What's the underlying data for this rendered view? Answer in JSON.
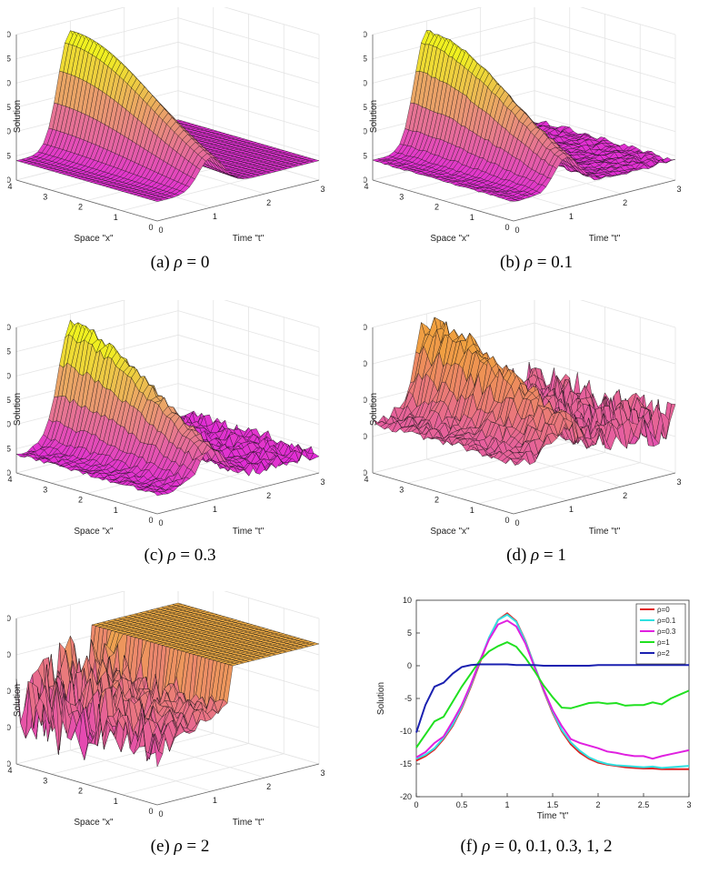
{
  "chart_data": [
    {
      "type": "surface",
      "caption_label": "(a)",
      "caption_symbol": "ρ",
      "caption_value": "= 0",
      "zlabel": "Solution",
      "xlabel": "Space \"x\"",
      "tlabel": "Time \"t\"",
      "zticks": [
        "10",
        "5",
        "0",
        "-5",
        "-10",
        "-15",
        "-20"
      ],
      "zlim": [
        -20,
        10
      ],
      "xticks": [
        "4",
        "3",
        "2",
        "1",
        "0"
      ],
      "tticks": [
        "0",
        "1",
        "2",
        "3"
      ],
      "noise": 0,
      "color_low": "#e020e0",
      "color_high": "#f0f020"
    },
    {
      "type": "surface",
      "caption_label": "(b)",
      "caption_symbol": "ρ",
      "caption_value": "= 0.1",
      "zlabel": "Solution",
      "xlabel": "Space \"x\"",
      "tlabel": "Time \"t\"",
      "zticks": [
        "10",
        "5",
        "0",
        "-5",
        "-10",
        "-15",
        "-20"
      ],
      "zlim": [
        -20,
        10
      ],
      "xticks": [
        "4",
        "3",
        "2",
        "1",
        "0"
      ],
      "tticks": [
        "0",
        "1",
        "2",
        "3"
      ],
      "noise": 0.1,
      "color_low": "#e020e0",
      "color_high": "#f0f020"
    },
    {
      "type": "surface",
      "caption_label": "(c)",
      "caption_symbol": "ρ",
      "caption_value": "= 0.3",
      "zlabel": "Solution",
      "xlabel": "Space \"x\"",
      "tlabel": "Time \"t\"",
      "zticks": [
        "10",
        "5",
        "0",
        "-5",
        "-10",
        "-15",
        "-20"
      ],
      "zlim": [
        -20,
        10
      ],
      "xticks": [
        "4",
        "3",
        "2",
        "1",
        "0"
      ],
      "tticks": [
        "0",
        "1",
        "2",
        "3"
      ],
      "noise": 0.3,
      "color_low": "#e020e0",
      "color_high": "#f0f020"
    },
    {
      "type": "surface",
      "caption_label": "(d)",
      "caption_symbol": "ρ",
      "caption_value": "= 1",
      "zlabel": "Solution",
      "xlabel": "Space \"x\"",
      "tlabel": "Time \"t\"",
      "zticks": [
        "10",
        "0",
        "-10",
        "-20",
        "-30"
      ],
      "zlim": [
        -30,
        10
      ],
      "xticks": [
        "4",
        "3",
        "2",
        "1",
        "0"
      ],
      "tticks": [
        "0",
        "1",
        "2",
        "3"
      ],
      "noise": 1,
      "color_low": "#e03cd0",
      "color_high": "#f0a040"
    },
    {
      "type": "surface",
      "caption_label": "(e)",
      "caption_symbol": "ρ",
      "caption_value": "= 2",
      "zlabel": "Solution",
      "xlabel": "Space \"x\"",
      "tlabel": "Time \"t\"",
      "zticks": [
        "10",
        "0",
        "-10",
        "-20",
        "-30"
      ],
      "zlim": [
        -30,
        10
      ],
      "xticks": [
        "4",
        "3",
        "2",
        "1",
        "0"
      ],
      "tticks": [
        "0",
        "1",
        "2",
        "3"
      ],
      "noise": 2,
      "color_low": "#e020e0",
      "color_high": "#f0b040"
    },
    {
      "type": "line",
      "caption_label": "(f)",
      "caption_symbol": "ρ",
      "caption_value": "= 0,  0.1,  0.3,  1,  2",
      "xlabel": "Time \"t\"",
      "ylabel": "Solution",
      "xlim": [
        0,
        3
      ],
      "ylim": [
        -20,
        10
      ],
      "xticks": [
        "0",
        "0.5",
        "1",
        "1.5",
        "2",
        "2.5",
        "3"
      ],
      "yticks": [
        "10",
        "5",
        "0",
        "-5",
        "-10",
        "-15",
        "-20"
      ],
      "x": [
        0,
        0.1,
        0.2,
        0.3,
        0.4,
        0.5,
        0.6,
        0.7,
        0.8,
        0.9,
        1.0,
        1.1,
        1.2,
        1.3,
        1.4,
        1.5,
        1.6,
        1.7,
        1.8,
        1.9,
        2.0,
        2.1,
        2.2,
        2.3,
        2.4,
        2.5,
        2.6,
        2.7,
        2.8,
        2.9,
        3.0
      ],
      "series": [
        {
          "name": "ρ=0",
          "color": "#e02020",
          "values": [
            -14.5,
            -13.8,
            -12.8,
            -11.2,
            -9.2,
            -6.5,
            -3.2,
            0.5,
            4.2,
            7.0,
            8.0,
            6.8,
            3.8,
            0.0,
            -3.8,
            -7.2,
            -10.0,
            -12.0,
            -13.3,
            -14.2,
            -14.8,
            -15.1,
            -15.3,
            -15.5,
            -15.6,
            -15.7,
            -15.7,
            -15.8,
            -15.8,
            -15.8,
            -15.8
          ]
        },
        {
          "name": "ρ=0.1",
          "color": "#30e0e0",
          "values": [
            -14.2,
            -13.6,
            -12.6,
            -11.0,
            -9.0,
            -6.3,
            -3.0,
            0.7,
            4.3,
            7.0,
            7.8,
            6.7,
            3.7,
            0.0,
            -3.7,
            -7.0,
            -9.8,
            -11.7,
            -13.0,
            -14.0,
            -14.6,
            -15.0,
            -15.2,
            -15.3,
            -15.4,
            -15.5,
            -15.4,
            -15.6,
            -15.5,
            -15.4,
            -15.3
          ]
        },
        {
          "name": "ρ=0.3",
          "color": "#e020e0",
          "values": [
            -14.0,
            -13.2,
            -11.8,
            -10.8,
            -8.5,
            -6.0,
            -2.8,
            0.8,
            4.0,
            6.3,
            6.9,
            6.0,
            3.4,
            -0.2,
            -3.6,
            -6.8,
            -9.2,
            -11.2,
            -11.8,
            -12.2,
            -12.6,
            -13.1,
            -13.3,
            -13.6,
            -13.8,
            -13.8,
            -14.2,
            -13.8,
            -13.5,
            -13.2,
            -12.9
          ]
        },
        {
          "name": "ρ=1",
          "color": "#20e020",
          "values": [
            -12.5,
            -10.5,
            -8.5,
            -7.8,
            -5.5,
            -3.2,
            -1.2,
            0.8,
            2.2,
            3.0,
            3.6,
            2.9,
            1.2,
            -0.8,
            -3.0,
            -4.8,
            -6.4,
            -6.5,
            -6.1,
            -5.7,
            -5.6,
            -5.8,
            -5.7,
            -6.1,
            -6.0,
            -6.0,
            -5.6,
            -5.9,
            -5.0,
            -4.4,
            -3.8
          ]
        },
        {
          "name": "ρ=2",
          "color": "#1a20b0",
          "values": [
            -10.2,
            -6.0,
            -3.2,
            -2.6,
            -1.2,
            -0.2,
            0.1,
            0.2,
            0.2,
            0.2,
            0.2,
            0.1,
            0.1,
            0.1,
            0.0,
            0.0,
            0.0,
            0.0,
            0.0,
            0.0,
            0.1,
            0.1,
            0.1,
            0.1,
            0.1,
            0.1,
            0.1,
            0.1,
            0.1,
            0.1,
            0.1
          ]
        }
      ]
    }
  ]
}
